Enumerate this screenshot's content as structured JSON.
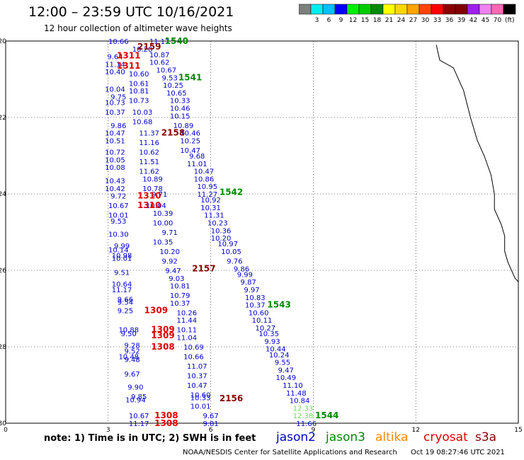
{
  "title": "12:00 – 23:59 UTC 10/16/2021",
  "subtitle": "12 hour collection of altimeter wave heights",
  "color_scale": {
    "colors": [
      "#7f7f7f",
      "#00eeee",
      "#00bfff",
      "#0000ff",
      "#00ee00",
      "#00cd00",
      "#008b00",
      "#ffff00",
      "#ffd700",
      "#ffa500",
      "#ff4500",
      "#ff0000",
      "#8b0000",
      "#800000",
      "#a020f0",
      "#ee82ee",
      "#ff69b4",
      "#000000"
    ],
    "tick_labels": [
      "3",
      "6",
      "9",
      "12",
      "15",
      "18",
      "21",
      "24",
      "27",
      "30",
      "33",
      "36",
      "39",
      "42",
      "45",
      "70"
    ],
    "unit": "(ft)"
  },
  "map": {
    "lon_labels": [
      "0",
      "3",
      "6",
      "9",
      "12",
      "15"
    ],
    "lat_labels": [
      "-20",
      "-22",
      "-24",
      "-26",
      "-28",
      "-30"
    ],
    "coastline_lon": [
      12.6,
      12.7,
      13.1,
      13.4,
      13.6,
      13.8,
      14.0,
      14.2,
      14.3,
      14.3,
      14.5,
      14.6,
      14.6,
      14.7,
      14.9,
      15.0,
      15.0
    ],
    "coastline_lat": [
      -20.1,
      -20.5,
      -20.7,
      -21.3,
      -22.0,
      -22.6,
      -23.0,
      -23.5,
      -24.0,
      -24.4,
      -24.8,
      -25.1,
      -25.5,
      -25.8,
      -26.2,
      -26.3,
      -26.4
    ]
  },
  "observations": [
    {
      "value": "10.66",
      "lon": 3.3,
      "lat": -20.0,
      "color": "#0000cc"
    },
    {
      "value": "11.17",
      "lon": 4.5,
      "lat": -20.0,
      "color": "#0000cc"
    },
    {
      "value": "10.28",
      "lon": 4.0,
      "lat": -20.2,
      "color": "#0000cc"
    },
    {
      "value": "10.87",
      "lon": 4.5,
      "lat": -20.35,
      "color": "#0000cc"
    },
    {
      "value": "9.64",
      "lon": 3.2,
      "lat": -20.4,
      "color": "#0000cc"
    },
    {
      "value": "11.14",
      "lon": 3.2,
      "lat": -20.6,
      "color": "#0000cc"
    },
    {
      "value": "10.62",
      "lon": 4.5,
      "lat": -20.55,
      "color": "#0000cc"
    },
    {
      "value": "10.40",
      "lon": 3.2,
      "lat": -20.8,
      "color": "#0000cc"
    },
    {
      "value": "10.67",
      "lon": 4.7,
      "lat": -20.75,
      "color": "#0000cc"
    },
    {
      "value": "10.60",
      "lon": 3.9,
      "lat": -20.85,
      "color": "#0000cc"
    },
    {
      "value": "9.53",
      "lon": 4.8,
      "lat": -20.95,
      "color": "#0000cc"
    },
    {
      "value": "10.61",
      "lon": 3.9,
      "lat": -21.1,
      "color": "#0000cc"
    },
    {
      "value": "10.25",
      "lon": 4.9,
      "lat": -21.15,
      "color": "#0000cc"
    },
    {
      "value": "10.04",
      "lon": 3.2,
      "lat": -21.25,
      "color": "#0000cc"
    },
    {
      "value": "10.81",
      "lon": 3.9,
      "lat": -21.3,
      "color": "#0000cc"
    },
    {
      "value": "10.65",
      "lon": 5.0,
      "lat": -21.35,
      "color": "#0000cc"
    },
    {
      "value": "9.75",
      "lon": 3.3,
      "lat": -21.45,
      "color": "#0000cc"
    },
    {
      "value": "10.73",
      "lon": 3.2,
      "lat": -21.6,
      "color": "#0000cc"
    },
    {
      "value": "10.73",
      "lon": 3.9,
      "lat": -21.55,
      "color": "#0000cc"
    },
    {
      "value": "10.33",
      "lon": 5.1,
      "lat": -21.55,
      "color": "#0000cc"
    },
    {
      "value": "10.37",
      "lon": 3.2,
      "lat": -21.85,
      "color": "#0000cc"
    },
    {
      "value": "10.03",
      "lon": 4.0,
      "lat": -21.85,
      "color": "#0000cc"
    },
    {
      "value": "10.46",
      "lon": 5.1,
      "lat": -21.75,
      "color": "#0000cc"
    },
    {
      "value": "10.15",
      "lon": 5.1,
      "lat": -21.95,
      "color": "#0000cc"
    },
    {
      "value": "9.86",
      "lon": 3.3,
      "lat": -22.2,
      "color": "#0000cc"
    },
    {
      "value": "10.68",
      "lon": 4.0,
      "lat": -22.1,
      "color": "#0000cc"
    },
    {
      "value": "10.89",
      "lon": 5.2,
      "lat": -22.2,
      "color": "#0000cc"
    },
    {
      "value": "10.47",
      "lon": 3.2,
      "lat": -22.4,
      "color": "#0000cc"
    },
    {
      "value": "11.37",
      "lon": 4.2,
      "lat": -22.4,
      "color": "#0000cc"
    },
    {
      "value": "10.46",
      "lon": 5.4,
      "lat": -22.4,
      "color": "#0000cc"
    },
    {
      "value": "10.51",
      "lon": 3.2,
      "lat": -22.6,
      "color": "#0000cc"
    },
    {
      "value": "11.16",
      "lon": 4.2,
      "lat": -22.65,
      "color": "#0000cc"
    },
    {
      "value": "10.25",
      "lon": 5.4,
      "lat": -22.6,
      "color": "#0000cc"
    },
    {
      "value": "10.47",
      "lon": 5.4,
      "lat": -22.85,
      "color": "#0000cc"
    },
    {
      "value": "10.72",
      "lon": 3.2,
      "lat": -22.9,
      "color": "#0000cc"
    },
    {
      "value": "10.62",
      "lon": 4.2,
      "lat": -22.9,
      "color": "#0000cc"
    },
    {
      "value": "9.68",
      "lon": 5.6,
      "lat": -23.0,
      "color": "#0000cc"
    },
    {
      "value": "10.05",
      "lon": 3.2,
      "lat": -23.1,
      "color": "#0000cc"
    },
    {
      "value": "11.51",
      "lon": 4.2,
      "lat": -23.15,
      "color": "#0000cc"
    },
    {
      "value": "11.01",
      "lon": 5.6,
      "lat": -23.2,
      "color": "#0000cc"
    },
    {
      "value": "10.08",
      "lon": 3.2,
      "lat": -23.3,
      "color": "#0000cc"
    },
    {
      "value": "11.62",
      "lon": 4.2,
      "lat": -23.4,
      "color": "#0000cc"
    },
    {
      "value": "10.47",
      "lon": 5.8,
      "lat": -23.4,
      "color": "#0000cc"
    },
    {
      "value": "10.86",
      "lon": 5.8,
      "lat": -23.6,
      "color": "#0000cc"
    },
    {
      "value": "10.43",
      "lon": 3.2,
      "lat": -23.65,
      "color": "#0000cc"
    },
    {
      "value": "10.89",
      "lon": 4.3,
      "lat": -23.6,
      "color": "#0000cc"
    },
    {
      "value": "10.95",
      "lon": 5.9,
      "lat": -23.8,
      "color": "#0000cc"
    },
    {
      "value": "10.42",
      "lon": 3.2,
      "lat": -23.85,
      "color": "#0000cc"
    },
    {
      "value": "10.78",
      "lon": 4.3,
      "lat": -23.85,
      "color": "#0000cc"
    },
    {
      "value": "11.27",
      "lon": 5.9,
      "lat": -24.0,
      "color": "#0000cc"
    },
    {
      "value": "9.72",
      "lon": 3.3,
      "lat": -24.05,
      "color": "#0000cc"
    },
    {
      "value": "9.71",
      "lon": 4.5,
      "lat": -24.0,
      "color": "#0000cc"
    },
    {
      "value": "10.92",
      "lon": 6.0,
      "lat": -24.15,
      "color": "#0000cc"
    },
    {
      "value": "10.67",
      "lon": 3.3,
      "lat": -24.3,
      "color": "#0000cc"
    },
    {
      "value": "10.04",
      "lon": 4.4,
      "lat": -24.3,
      "color": "#0000cc"
    },
    {
      "value": "10.31",
      "lon": 6.0,
      "lat": -24.35,
      "color": "#0000cc"
    },
    {
      "value": "10.01",
      "lon": 3.3,
      "lat": -24.55,
      "color": "#0000cc"
    },
    {
      "value": "10.39",
      "lon": 4.6,
      "lat": -24.5,
      "color": "#0000cc"
    },
    {
      "value": "11.31",
      "lon": 6.1,
      "lat": -24.55,
      "color": "#0000cc"
    },
    {
      "value": "9.53",
      "lon": 3.3,
      "lat": -24.7,
      "color": "#0000cc"
    },
    {
      "value": "10.00",
      "lon": 4.6,
      "lat": -24.75,
      "color": "#0000cc"
    },
    {
      "value": "10.23",
      "lon": 6.2,
      "lat": -24.75,
      "color": "#0000cc"
    },
    {
      "value": "10.36",
      "lon": 6.3,
      "lat": -24.95,
      "color": "#0000cc"
    },
    {
      "value": "10.30",
      "lon": 3.3,
      "lat": -25.05,
      "color": "#0000cc"
    },
    {
      "value": "9.71",
      "lon": 4.8,
      "lat": -25.0,
      "color": "#0000cc"
    },
    {
      "value": "10.20",
      "lon": 6.3,
      "lat": -25.15,
      "color": "#0000cc"
    },
    {
      "value": "10.35",
      "lon": 4.6,
      "lat": -25.25,
      "color": "#0000cc"
    },
    {
      "value": "10.97",
      "lon": 6.5,
      "lat": -25.3,
      "color": "#0000cc"
    },
    {
      "value": "9.99",
      "lon": 3.4,
      "lat": -25.35,
      "color": "#0000cc"
    },
    {
      "value": "10.14",
      "lon": 3.3,
      "lat": -25.45,
      "color": "#0000cc"
    },
    {
      "value": "10.20",
      "lon": 4.8,
      "lat": -25.5,
      "color": "#0000cc"
    },
    {
      "value": "10.05",
      "lon": 6.6,
      "lat": -25.5,
      "color": "#0000cc"
    },
    {
      "value": "10.98",
      "lon": 3.4,
      "lat": -25.6,
      "color": "#0000cc"
    },
    {
      "value": "10.01",
      "lon": 3.4,
      "lat": -25.68,
      "color": "#0000cc"
    },
    {
      "value": "9.92",
      "lon": 4.8,
      "lat": -25.75,
      "color": "#0000cc"
    },
    {
      "value": "9.76",
      "lon": 6.7,
      "lat": -25.75,
      "color": "#0000cc"
    },
    {
      "value": "9.47",
      "lon": 4.9,
      "lat": -26.0,
      "color": "#0000cc"
    },
    {
      "value": "9.86",
      "lon": 6.9,
      "lat": -25.95,
      "color": "#0000cc"
    },
    {
      "value": "9.51",
      "lon": 3.4,
      "lat": -26.05,
      "color": "#0000cc"
    },
    {
      "value": "9.03",
      "lon": 5.0,
      "lat": -26.2,
      "color": "#0000cc"
    },
    {
      "value": "9.99",
      "lon": 7.0,
      "lat": -26.1,
      "color": "#0000cc"
    },
    {
      "value": "9.87",
      "lon": 7.1,
      "lat": -26.3,
      "color": "#0000cc"
    },
    {
      "value": "10.64",
      "lon": 3.4,
      "lat": -26.35,
      "color": "#0000cc"
    },
    {
      "value": "10.81",
      "lon": 5.1,
      "lat": -26.4,
      "color": "#0000cc"
    },
    {
      "value": "11.17",
      "lon": 3.4,
      "lat": -26.5,
      "color": "#0000cc"
    },
    {
      "value": "9.97",
      "lon": 7.2,
      "lat": -26.5,
      "color": "#0000cc"
    },
    {
      "value": "10.79",
      "lon": 5.1,
      "lat": -26.65,
      "color": "#0000cc"
    },
    {
      "value": "10.83",
      "lon": 7.3,
      "lat": -26.7,
      "color": "#0000cc"
    },
    {
      "value": "9.66",
      "lon": 3.5,
      "lat": -26.75,
      "color": "#0000cc"
    },
    {
      "value": "9.54",
      "lon": 3.5,
      "lat": -26.82,
      "color": "#0000cc"
    },
    {
      "value": "10.37",
      "lon": 5.1,
      "lat": -26.85,
      "color": "#0000cc"
    },
    {
      "value": "10.37",
      "lon": 7.3,
      "lat": -26.9,
      "color": "#0000cc"
    },
    {
      "value": "9.25",
      "lon": 3.5,
      "lat": -27.05,
      "color": "#0000cc"
    },
    {
      "value": "10.26",
      "lon": 5.3,
      "lat": -27.1,
      "color": "#0000cc"
    },
    {
      "value": "10.60",
      "lon": 7.4,
      "lat": -27.1,
      "color": "#0000cc"
    },
    {
      "value": "11.44",
      "lon": 5.3,
      "lat": -27.3,
      "color": "#0000cc"
    },
    {
      "value": "10.11",
      "lon": 7.5,
      "lat": -27.3,
      "color": "#0000cc"
    },
    {
      "value": "10.27",
      "lon": 7.6,
      "lat": -27.5,
      "color": "#0000cc"
    },
    {
      "value": "10.88",
      "lon": 3.6,
      "lat": -27.55,
      "color": "#0000cc"
    },
    {
      "value": "10.11",
      "lon": 5.3,
      "lat": -27.55,
      "color": "#0000cc"
    },
    {
      "value": "9.50",
      "lon": 3.6,
      "lat": -27.65,
      "color": "#0000cc"
    },
    {
      "value": "10.35",
      "lon": 7.7,
      "lat": -27.65,
      "color": "#0000cc"
    },
    {
      "value": "11.04",
      "lon": 5.3,
      "lat": -27.75,
      "color": "#0000cc"
    },
    {
      "value": "9.93",
      "lon": 7.8,
      "lat": -27.85,
      "color": "#0000cc"
    },
    {
      "value": "9.28",
      "lon": 3.7,
      "lat": -27.95,
      "color": "#0000cc"
    },
    {
      "value": "10.69",
      "lon": 5.5,
      "lat": -28.0,
      "color": "#0000cc"
    },
    {
      "value": "10.44",
      "lon": 7.9,
      "lat": -28.05,
      "color": "#0000cc"
    },
    {
      "value": "9.52",
      "lon": 3.7,
      "lat": -28.1,
      "color": "#0000cc"
    },
    {
      "value": "10.24",
      "lon": 8.0,
      "lat": -28.2,
      "color": "#0000cc"
    },
    {
      "value": "10.66",
      "lon": 5.5,
      "lat": -28.25,
      "color": "#0000cc"
    },
    {
      "value": "10.48",
      "lon": 3.6,
      "lat": -28.25,
      "color": "#0000cc"
    },
    {
      "value": "9.48",
      "lon": 3.7,
      "lat": -28.32,
      "color": "#0000cc"
    },
    {
      "value": "9.55",
      "lon": 8.1,
      "lat": -28.4,
      "color": "#0000cc"
    },
    {
      "value": "11.07",
      "lon": 5.6,
      "lat": -28.5,
      "color": "#0000cc"
    },
    {
      "value": "9.47",
      "lon": 8.2,
      "lat": -28.6,
      "color": "#0000cc"
    },
    {
      "value": "9.67",
      "lon": 3.7,
      "lat": -28.7,
      "color": "#0000cc"
    },
    {
      "value": "10.37",
      "lon": 5.6,
      "lat": -28.75,
      "color": "#0000cc"
    },
    {
      "value": "10.49",
      "lon": 8.2,
      "lat": -28.8,
      "color": "#0000cc"
    },
    {
      "value": "10.47",
      "lon": 5.6,
      "lat": -29.0,
      "color": "#0000cc"
    },
    {
      "value": "9.90",
      "lon": 3.8,
      "lat": -29.05,
      "color": "#0000cc"
    },
    {
      "value": "11.10",
      "lon": 8.4,
      "lat": -29.0,
      "color": "#0000cc"
    },
    {
      "value": "10.60",
      "lon": 5.7,
      "lat": -29.25,
      "color": "#0000cc"
    },
    {
      "value": "11.48",
      "lon": 8.5,
      "lat": -29.2,
      "color": "#0000cc"
    },
    {
      "value": "9.85",
      "lon": 3.9,
      "lat": -29.3,
      "color": "#0000cc"
    },
    {
      "value": "10.94",
      "lon": 3.8,
      "lat": -29.38,
      "color": "#0000cc"
    },
    {
      "value": "10.33",
      "lon": 5.7,
      "lat": -29.32,
      "color": "#0000cc"
    },
    {
      "value": "10.84",
      "lon": 8.6,
      "lat": -29.4,
      "color": "#0000cc"
    },
    {
      "value": "10.01",
      "lon": 5.7,
      "lat": -29.55,
      "color": "#0000cc"
    },
    {
      "value": "12.33",
      "lon": 8.7,
      "lat": -29.6,
      "color": "#66dd55"
    },
    {
      "value": "10.67",
      "lon": 3.9,
      "lat": -29.8,
      "color": "#0000cc"
    },
    {
      "value": "9.67",
      "lon": 6.0,
      "lat": -29.8,
      "color": "#0000cc"
    },
    {
      "value": "12.38",
      "lon": 8.7,
      "lat": -29.8,
      "color": "#66dd55"
    },
    {
      "value": "11.17",
      "lon": 3.9,
      "lat": -30.0,
      "color": "#0000cc"
    },
    {
      "value": "9.81",
      "lon": 6.0,
      "lat": -30.0,
      "color": "#0000cc"
    },
    {
      "value": "11.66",
      "lon": 8.8,
      "lat": -30.0,
      "color": "#0000cc"
    }
  ],
  "pass_labels": [
    {
      "text": "1540",
      "lon": 5.0,
      "lat": -20.0,
      "color": "#008800"
    },
    {
      "text": "2159",
      "lon": 4.2,
      "lat": -20.15,
      "color": "#880000"
    },
    {
      "text": "1311",
      "lon": 3.6,
      "lat": -20.38,
      "color": "#dd0000"
    },
    {
      "text": "1311",
      "lon": 3.6,
      "lat": -20.65,
      "color": "#dd0000"
    },
    {
      "text": "1541",
      "lon": 5.4,
      "lat": -20.95,
      "color": "#008800"
    },
    {
      "text": "2158",
      "lon": 4.9,
      "lat": -22.4,
      "color": "#880000"
    },
    {
      "text": "1542",
      "lon": 6.6,
      "lat": -23.95,
      "color": "#008800"
    },
    {
      "text": "1310",
      "lon": 4.2,
      "lat": -24.05,
      "color": "#dd0000"
    },
    {
      "text": "1310",
      "lon": 4.2,
      "lat": -24.3,
      "color": "#dd0000"
    },
    {
      "text": "2157",
      "lon": 5.8,
      "lat": -25.95,
      "color": "#880000"
    },
    {
      "text": "1543",
      "lon": 8.0,
      "lat": -26.9,
      "color": "#008800"
    },
    {
      "text": "1309",
      "lon": 4.4,
      "lat": -27.05,
      "color": "#dd0000"
    },
    {
      "text": "1309",
      "lon": 4.6,
      "lat": -27.55,
      "color": "#dd0000"
    },
    {
      "text": "1309",
      "lon": 4.6,
      "lat": -27.7,
      "color": "#dd0000"
    },
    {
      "text": "1308",
      "lon": 4.6,
      "lat": -28.0,
      "color": "#dd0000"
    },
    {
      "text": "2156",
      "lon": 6.6,
      "lat": -29.35,
      "color": "#880000"
    },
    {
      "text": "1544",
      "lon": 9.4,
      "lat": -29.8,
      "color": "#008800"
    },
    {
      "text": "1308",
      "lon": 4.7,
      "lat": -29.8,
      "color": "#dd0000"
    },
    {
      "text": "1308",
      "lon": 4.7,
      "lat": -30.0,
      "color": "#dd0000"
    }
  ],
  "footnote": "note: 1) Time is in UTC; 2) SWH is in feet",
  "legend": [
    {
      "name": "jason2",
      "color": "#0000cc"
    },
    {
      "name": "jason3",
      "color": "#008800"
    },
    {
      "name": "altika",
      "color": "#ff8800"
    },
    {
      "name": "cryosat",
      "color": "#dd0000"
    },
    {
      "name": "s3a",
      "color": "#880000"
    }
  ],
  "credit": "NOAA/NESDIS Center for Satellite Applications and Research",
  "timestamp": "Oct 19 08:27:46 UTC 2021"
}
